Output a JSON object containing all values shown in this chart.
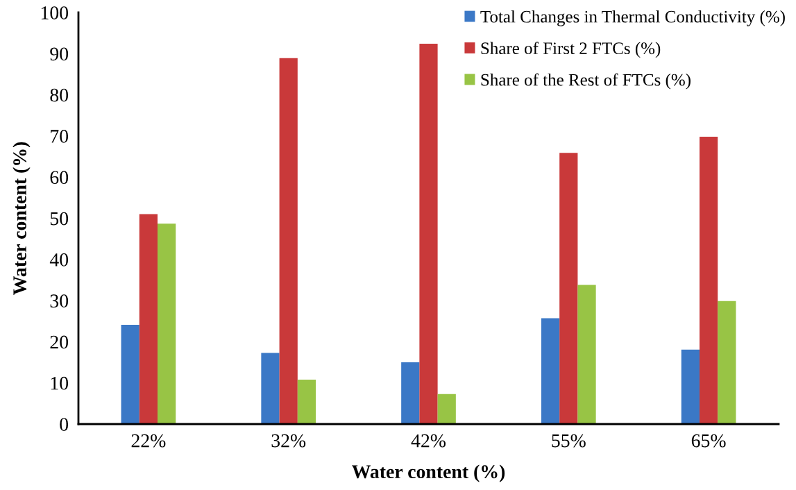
{
  "chart_data": {
    "type": "bar",
    "xlabel": "Water content (%)",
    "ylabel": "Water content (%)",
    "categories": [
      "22%",
      "32%",
      "42%",
      "55%",
      "65%"
    ],
    "series": [
      {
        "name": "Total Changes in Thermal Conductivity (%)",
        "color": "#3b78c6",
        "values": [
          24.1,
          17.3,
          15.0,
          25.7,
          18.1
        ]
      },
      {
        "name": "Share of First 2 FTCs (%)",
        "color": "#c9393a",
        "values": [
          51.0,
          88.9,
          92.4,
          65.9,
          69.8
        ]
      },
      {
        "name": "Share of the Rest of FTCs (%)",
        "color": "#98c445",
        "values": [
          48.7,
          10.8,
          7.3,
          33.8,
          29.9
        ]
      }
    ],
    "ylim": [
      0,
      100
    ],
    "yticks": [
      0,
      10,
      20,
      30,
      40,
      50,
      60,
      70,
      80,
      90,
      100
    ],
    "grid": false,
    "legend": "top right"
  }
}
